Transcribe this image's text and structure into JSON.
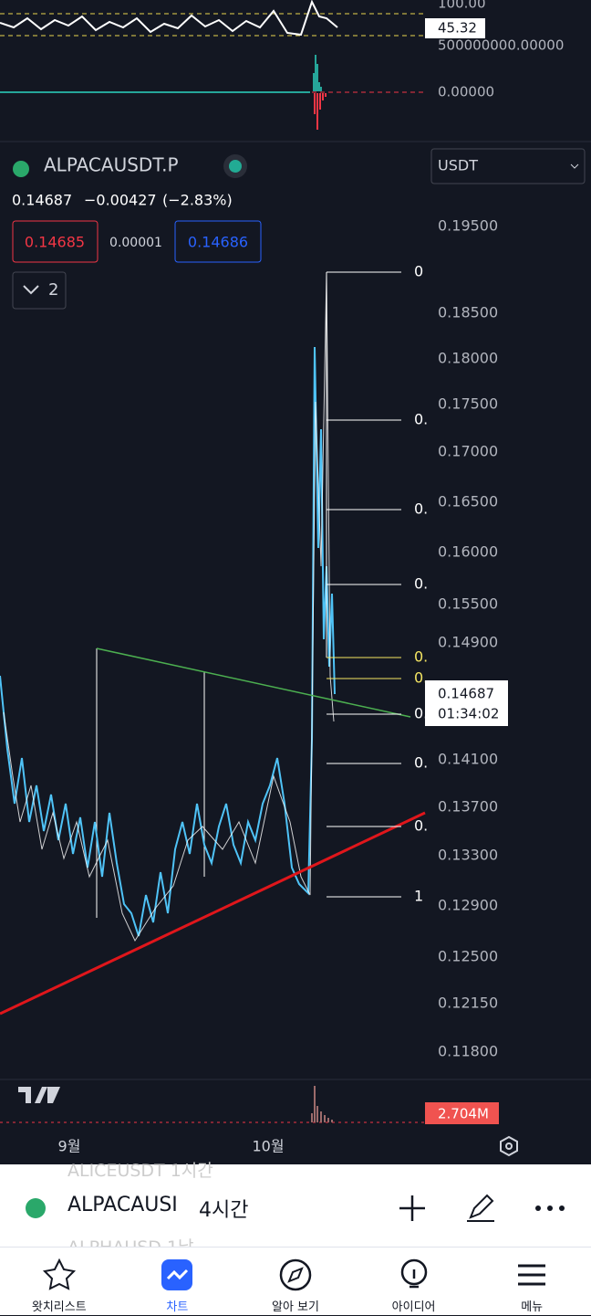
{
  "top_panel": {
    "axis_top": "100.00",
    "value_tag": "45.32",
    "axis_mid": "500000000.00000",
    "axis_zero": "0.00000"
  },
  "header": {
    "symbol": "ALPACAUSDT.P",
    "currency": "USDT",
    "price": "0.14687",
    "change": "−0.00427",
    "change_pct": "(−2.83%)",
    "bid": "0.14685",
    "spread": "0.00001",
    "ask": "0.14686",
    "indicator_count": "2"
  },
  "price_axis": [
    "0.19500",
    "0.18500",
    "0.18000",
    "0.17500",
    "0.17000",
    "0.16500",
    "0.16000",
    "0.15500",
    "0.14900",
    "0.14100",
    "0.13700",
    "0.13300",
    "0.12900",
    "0.12500",
    "0.12150",
    "0.11800"
  ],
  "price_tag": {
    "price": "0.14687",
    "countdown": "01:34:02"
  },
  "fib_labels": [
    "0",
    "0.",
    "0.",
    "0.",
    "0.",
    "0.",
    "0.",
    "0.",
    "0.",
    "1"
  ],
  "volume_tag": "2.704M",
  "time_axis": [
    "9월",
    "10월"
  ],
  "symbol_bar": {
    "prev": "ALICEUSDT  1시간",
    "symbol": "ALPACAUSI",
    "interval": "4시간",
    "next": "ALPHAUSD  1날"
  },
  "nav": [
    "왓치리스트",
    "차트",
    "알아 보기",
    "아이디어",
    "메뉴"
  ]
}
